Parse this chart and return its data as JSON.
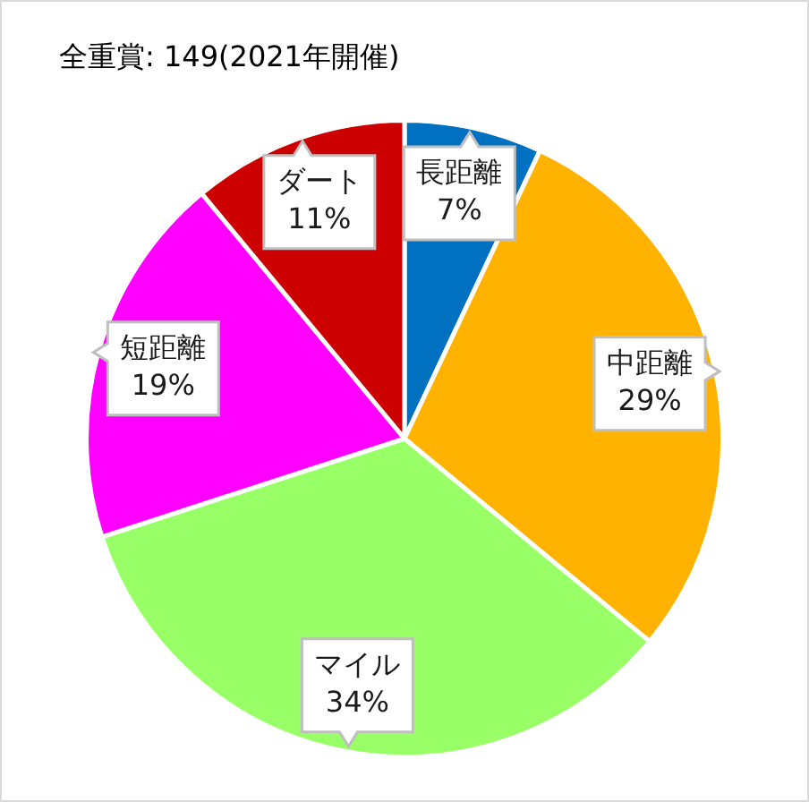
{
  "chart_data": {
    "type": "pie",
    "title": "全重賞: 149(2021年開催)",
    "categories": [
      "長距離",
      "中距離",
      "マイル",
      "短距離",
      "ダート"
    ],
    "values": [
      7,
      29,
      34,
      19,
      11
    ],
    "colors": [
      "#0070c0",
      "#ffb300",
      "#99ff66",
      "#ff00ff",
      "#cc0000"
    ],
    "value_labels": [
      "7%",
      "29%",
      "34%",
      "19%",
      "11%"
    ],
    "legend": false
  }
}
